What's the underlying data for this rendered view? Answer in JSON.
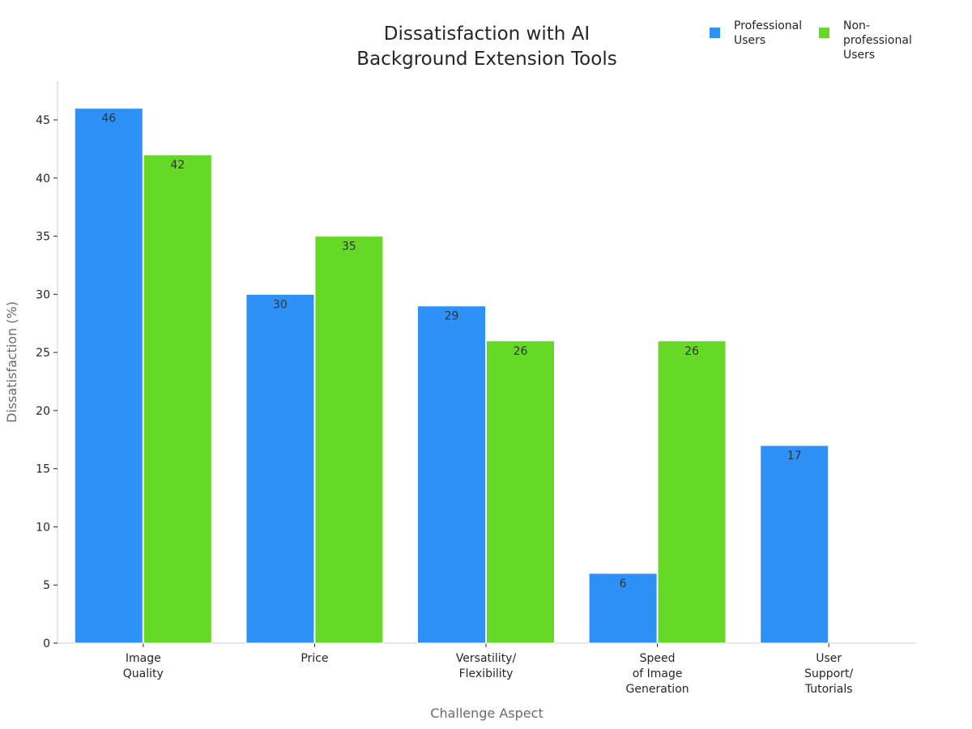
{
  "chart_data": {
    "type": "bar",
    "title": [
      "Dissatisfaction with AI",
      "Background Extension Tools"
    ],
    "xlabel": "Challenge Aspect",
    "ylabel": "Dissatisfaction (%)",
    "ylim": [
      0,
      48
    ],
    "yticks": [
      0,
      5,
      10,
      15,
      20,
      25,
      30,
      35,
      40,
      45
    ],
    "categories": [
      [
        "Image",
        "Quality"
      ],
      [
        "Price"
      ],
      [
        "Versatility/",
        "Flexibility"
      ],
      [
        "Speed",
        "of Image",
        "Generation"
      ],
      [
        "User",
        "Support/",
        "Tutorials"
      ]
    ],
    "series": [
      {
        "name": [
          "Professional",
          "Users"
        ],
        "color": "#2e91f7",
        "values": [
          46,
          30,
          29,
          6,
          17
        ]
      },
      {
        "name": [
          "Non-",
          "professional",
          "Users"
        ],
        "color": "#66d926",
        "values": [
          42,
          35,
          26,
          26,
          null
        ]
      }
    ],
    "legend_position": "top-right",
    "grid": false
  }
}
